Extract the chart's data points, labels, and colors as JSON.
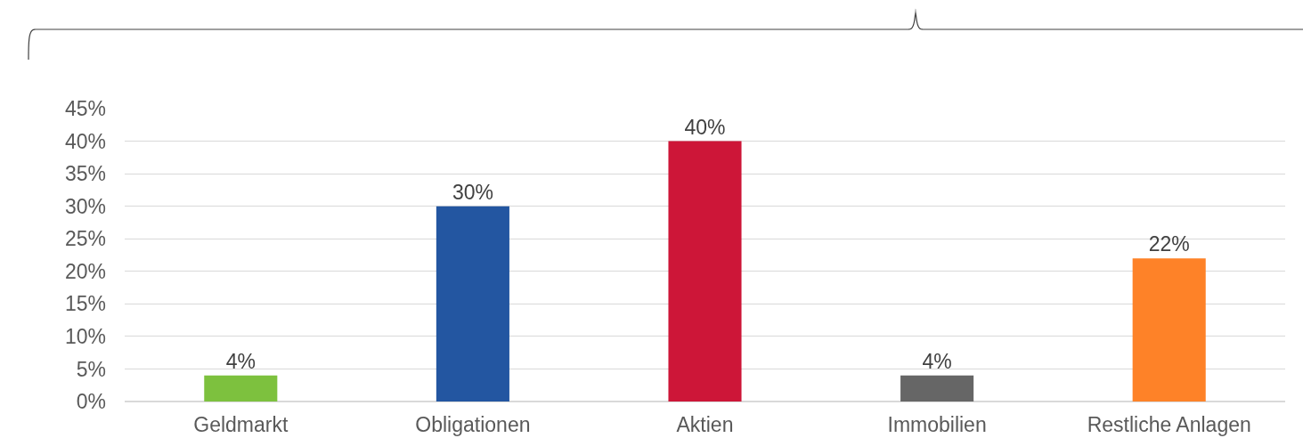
{
  "chart_data": {
    "type": "bar",
    "categories": [
      "Geldmarkt",
      "Obligationen",
      "Aktien",
      "Immobilien",
      "Restliche Anlagen"
    ],
    "values": [
      4,
      30,
      40,
      4,
      22
    ],
    "colors": [
      "#7dc13e",
      "#2356a1",
      "#cd1638",
      "#666666",
      "#fe8228"
    ],
    "value_labels": [
      "4%",
      "30%",
      "40%",
      "4%",
      "22%"
    ],
    "ylim": [
      0,
      45
    ],
    "yticks": [
      {
        "value": 0,
        "label": "0%"
      },
      {
        "value": 5,
        "label": "5%"
      },
      {
        "value": 10,
        "label": "10%"
      },
      {
        "value": 15,
        "label": "15%"
      },
      {
        "value": 20,
        "label": "20%"
      },
      {
        "value": 25,
        "label": "25%"
      },
      {
        "value": 30,
        "label": "30%"
      },
      {
        "value": 35,
        "label": "35%"
      },
      {
        "value": 40,
        "label": "40%"
      },
      {
        "value": 45,
        "label": "45%"
      }
    ],
    "grid": "y"
  }
}
